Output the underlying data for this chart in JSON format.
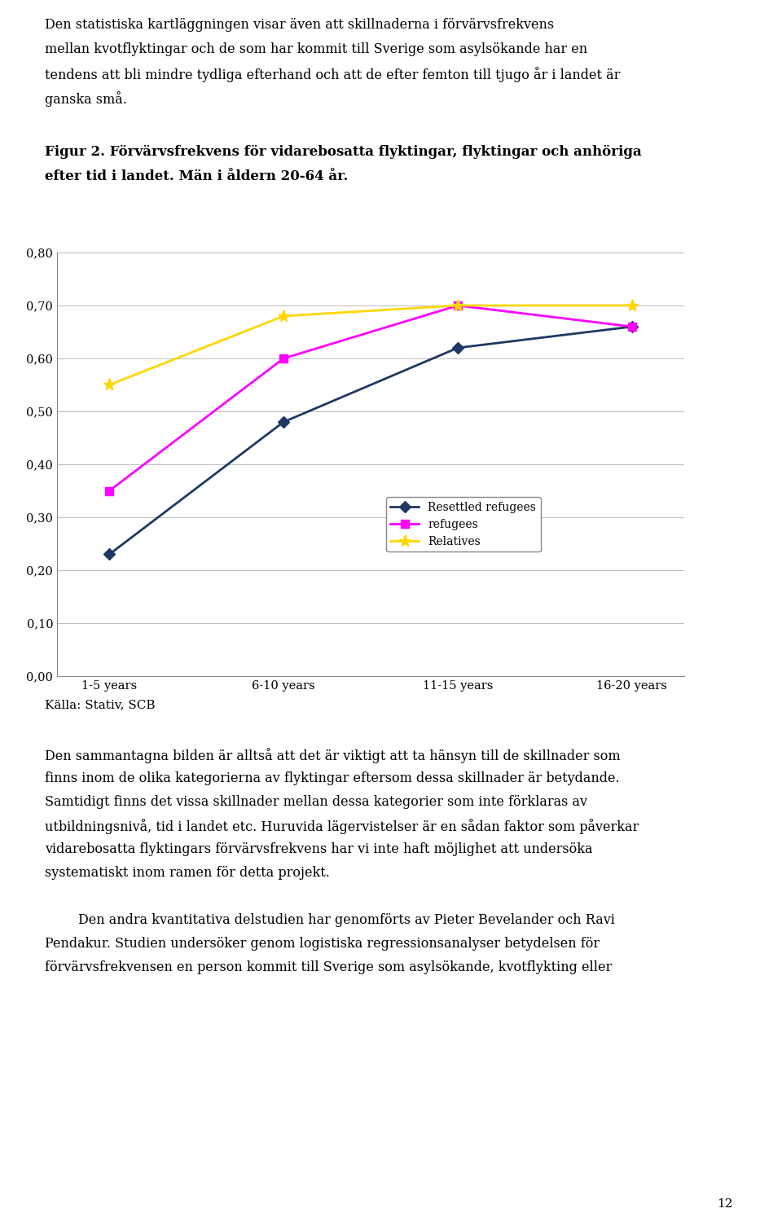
{
  "x_labels": [
    "1-5 years",
    "6-10 years",
    "11-15 years",
    "16-20 years"
  ],
  "resettled_refugees": [
    0.23,
    0.48,
    0.62,
    0.66
  ],
  "refugees": [
    0.35,
    0.6,
    0.7,
    0.66
  ],
  "relatives": [
    0.55,
    0.68,
    0.7,
    0.7
  ],
  "resettled_color": "#1F3864",
  "refugees_color": "#FF00FF",
  "relatives_color": "#FFD700",
  "ylim": [
    0.0,
    0.8
  ],
  "yticks": [
    0.0,
    0.1,
    0.2,
    0.3,
    0.4,
    0.5,
    0.6,
    0.7,
    0.8
  ],
  "ytick_labels": [
    "0,00",
    "0,10",
    "0,20",
    "0,30",
    "0,40",
    "0,50",
    "0,60",
    "0,70",
    "0,80"
  ],
  "source_text": "Källa: Stativ, SCB",
  "page_number": "12",
  "background_color": "#FFFFFF",
  "legend_resettled": "Resettled refugees",
  "legend_refugees": "refugees",
  "legend_relatives": "Relatives",
  "top_para": "Den statistiska kartläggningen visar även att skillnaderna i förvärvsfrekvens mellan kvotflyktingar och de som har kommit till Sverige som asylsökande har en tendens att bli mindre tydliga efterhand och att de efter femton till tjugo år i landet är ganska små.",
  "fig_caption_bold": "Figur 2. Förvärvsfrekvens för vidarebosatta flyktingar, flyktingar och anhöriga efter tid i landet. Män i åldern 20-64 år.",
  "bottom_para2_line1": "Den sammantagna bilden är alltså att det är viktigt att ta hänsyn till de skillnader som",
  "bottom_para2_line2": "finns inom de olika kategorierna av flyktingar eftersom dessa skillnader är betydande.",
  "bottom_para2_line3": "Samtidigt finns det vissa skillnader mellan dessa kategorier som inte förklaras av",
  "bottom_para2_line4": "utbildningsnivå, tid i landet etc. Huruvida lägervistelser är en sådan faktor som påverkar",
  "bottom_para2_line5": "vidarebosatta flyktingars förvärvsfrekvens har vi inte haft möjlighet att undersöka",
  "bottom_para2_line6": "systematiskt inom ramen för detta projekt.",
  "bottom_para3_line1": "        Den andra kvantitativa delstudien har genomförts av Pieter Bevelander och Ravi",
  "bottom_para3_line2": "Pendakur. Studien undersöker genom logistiska regressionsanalyser betydelsen för",
  "bottom_para3_line3": "förvärvsfrekvensen en person kommit till Sverige som asylsökande, kvotflykting eller"
}
